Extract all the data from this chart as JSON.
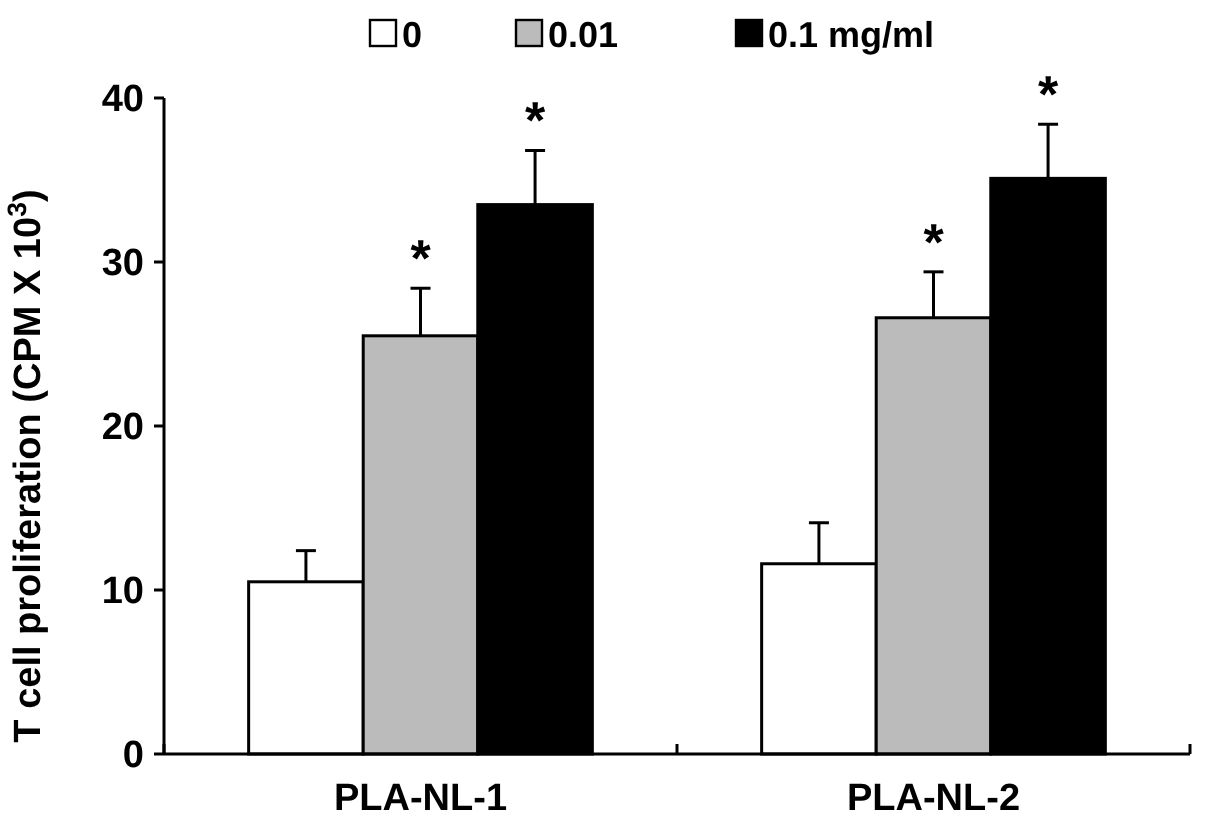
{
  "chart_data": {
    "type": "bar",
    "ylabel": "T cell proliferation (CPM X 10$^{3}$)",
    "categories": [
      "PLA-NL-1",
      "PLA-NL-2"
    ],
    "series": [
      {
        "name": "0",
        "color": "#ffffff",
        "values": [
          10.5,
          11.6
        ],
        "errors": [
          1.9,
          2.5
        ]
      },
      {
        "name": "0.01",
        "color": "#bbbbbb",
        "values": [
          25.5,
          26.6
        ],
        "errors": [
          2.9,
          2.8
        ]
      },
      {
        "name": "0.1 mg/ml",
        "color": "#000000",
        "values": [
          33.5,
          35.1
        ],
        "errors": [
          3.3,
          3.3
        ]
      }
    ],
    "ylim": [
      0,
      40
    ],
    "yticks": [
      0,
      10,
      20,
      30,
      40
    ],
    "grid": false,
    "legend": "top",
    "annotations": [
      "*",
      "*",
      "*",
      "*"
    ]
  }
}
